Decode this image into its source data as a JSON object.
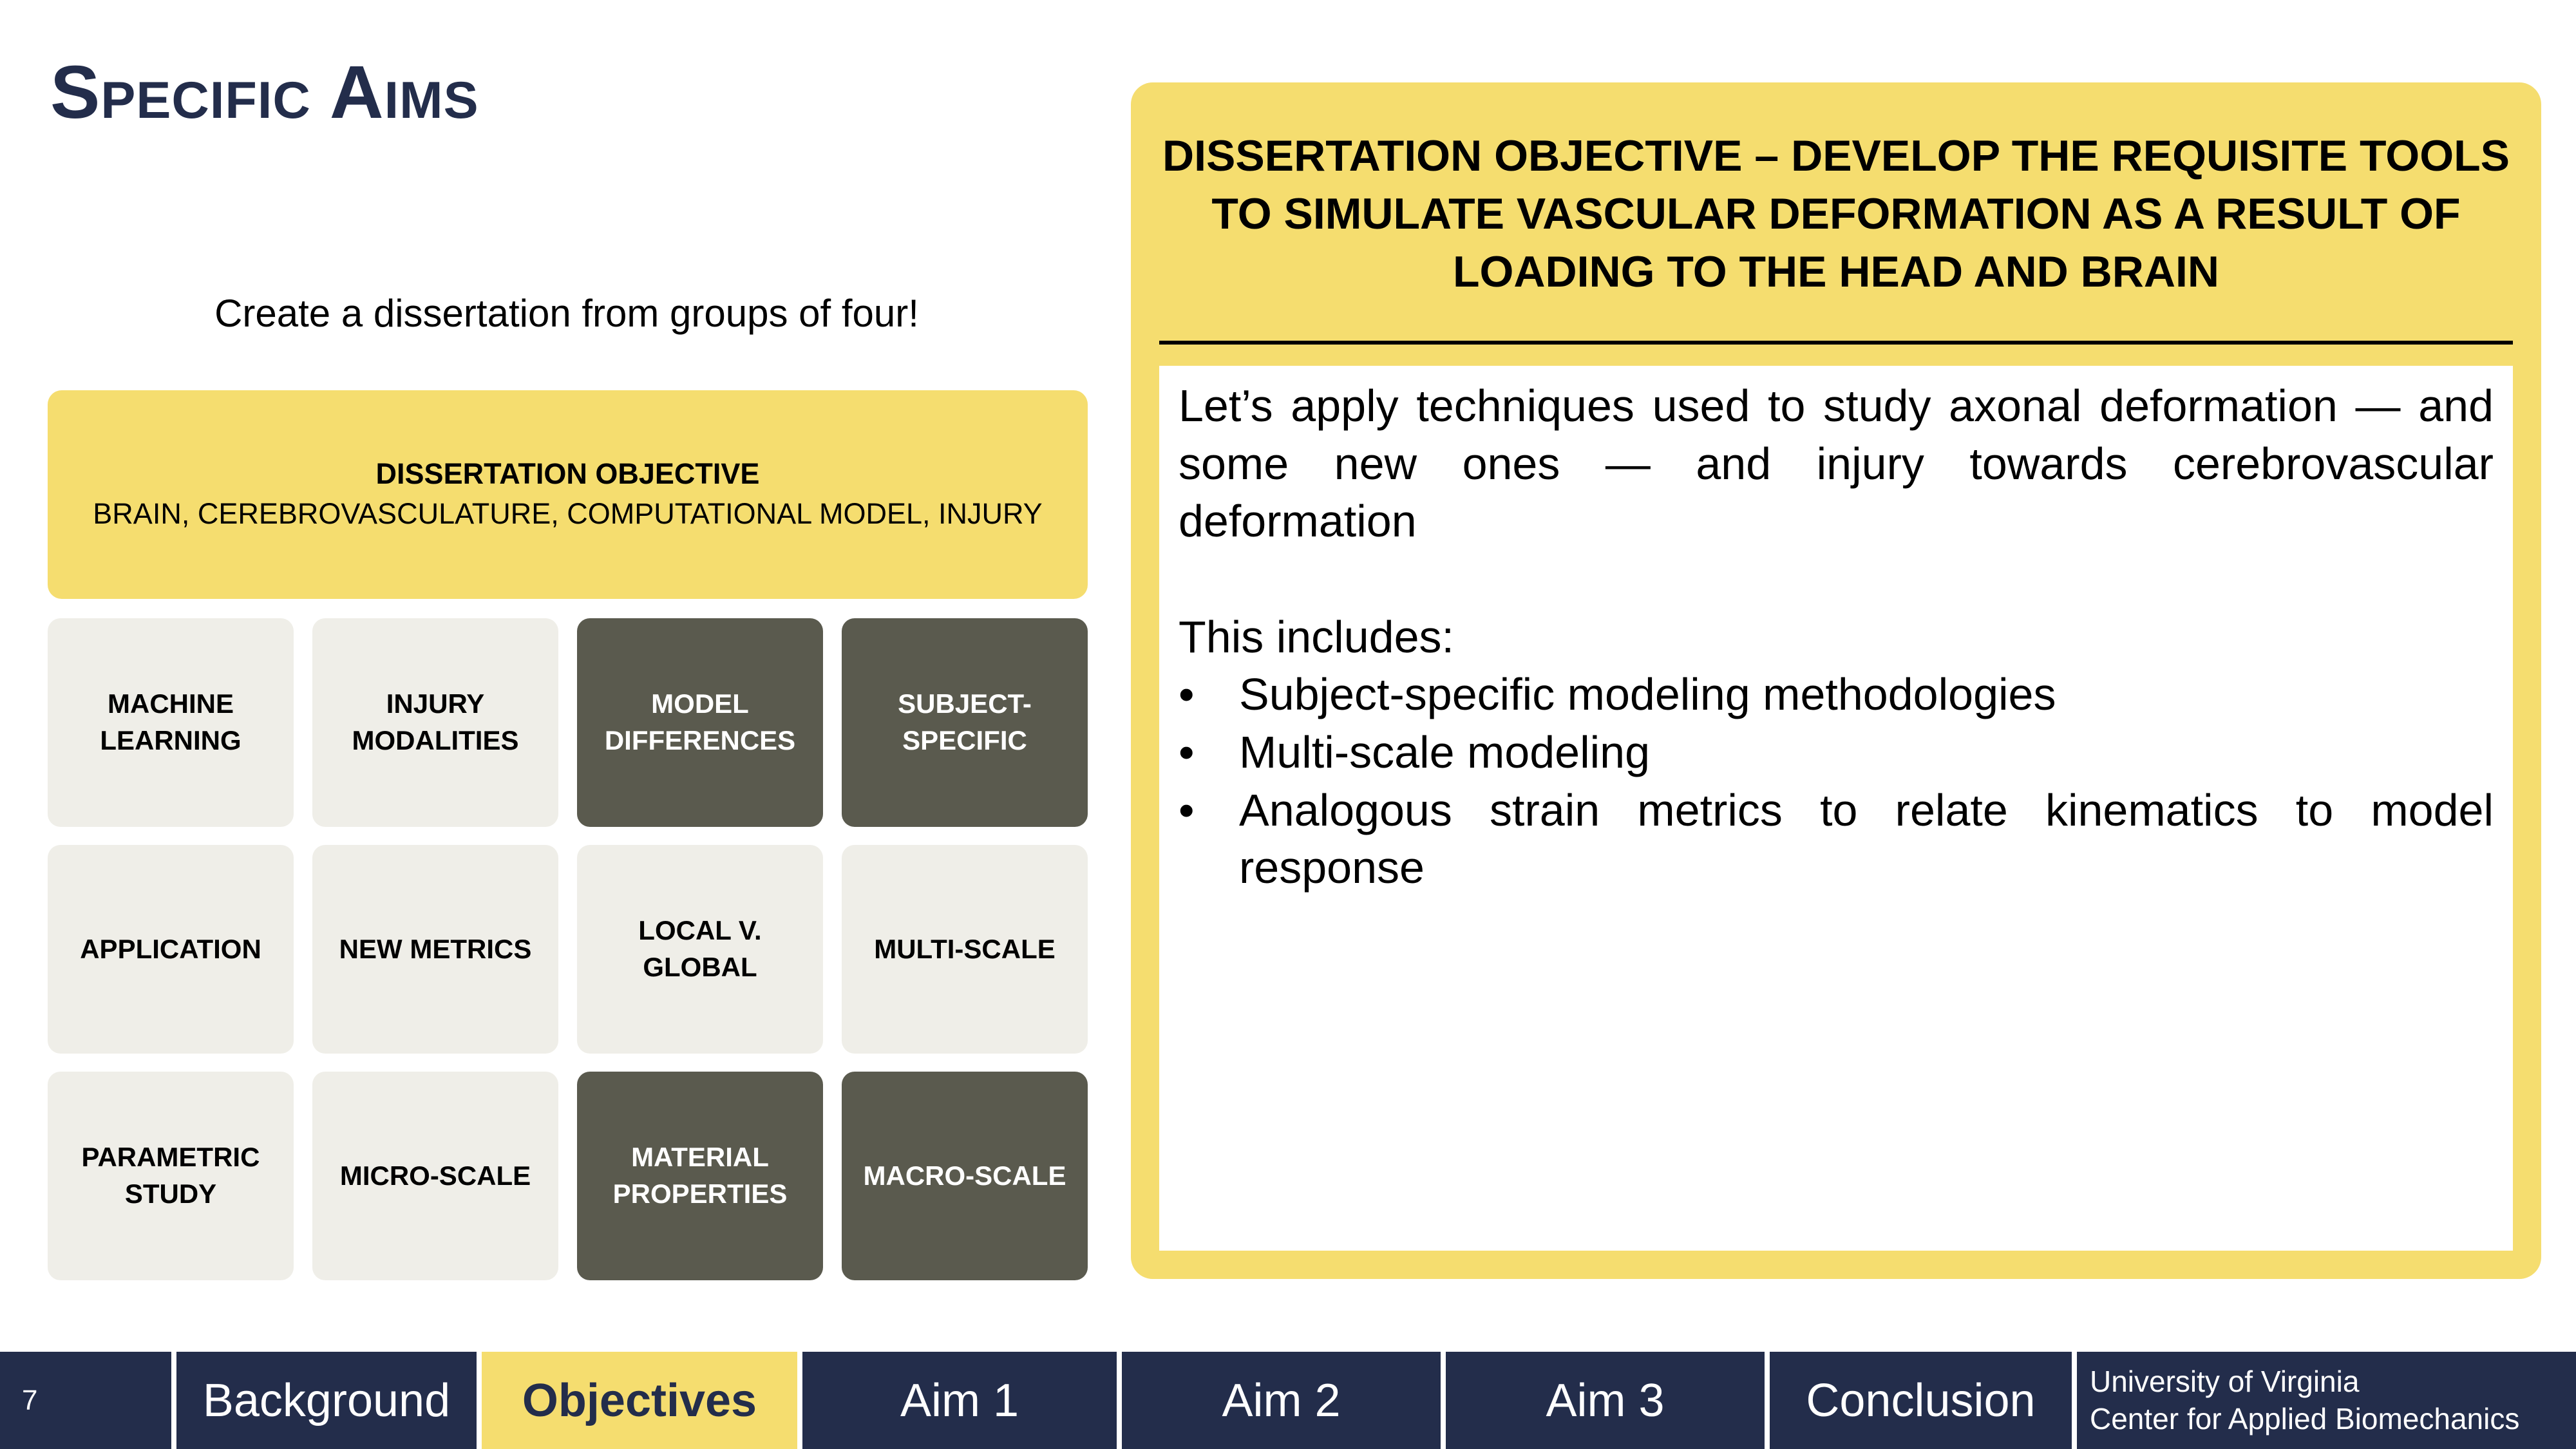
{
  "slide": {
    "title": "Specific Aims",
    "subtitle": "Create a dissertation from groups of four!"
  },
  "banner": {
    "heading": "DISSERTATION OBJECTIVE",
    "keywords": "BRAIN, CEREBROVASCULATURE, COMPUTATIONAL MODEL, INJURY"
  },
  "tiles": [
    {
      "label": "MACHINE LEARNING",
      "style": "light"
    },
    {
      "label": "INJURY MODALITIES",
      "style": "light"
    },
    {
      "label": "MODEL DIFFERENCES",
      "style": "dark"
    },
    {
      "label": "SUBJECT-SPECIFIC",
      "style": "dark"
    },
    {
      "label": "APPLICATION",
      "style": "light"
    },
    {
      "label": "NEW METRICS",
      "style": "light"
    },
    {
      "label": "LOCAL V. GLOBAL",
      "style": "light"
    },
    {
      "label": "MULTI-SCALE",
      "style": "light"
    },
    {
      "label": "PARAMETRIC STUDY",
      "style": "light"
    },
    {
      "label": "MICRO-SCALE",
      "style": "light"
    },
    {
      "label": "MATERIAL PROPERTIES",
      "style": "dark"
    },
    {
      "label": "MACRO-SCALE",
      "style": "dark"
    }
  ],
  "objective": {
    "heading": "DISSERTATION OBJECTIVE – DEVELOP THE REQUISITE TOOLS TO SIMULATE VASCULAR DEFORMATION AS A RESULT OF LOADING TO THE HEAD AND BRAIN",
    "paragraph": "Let’s apply techniques used to study axonal deformation — and some new ones — and injury towards cerebrovascular deformation",
    "includes_label": "This includes:",
    "bullet_char": "•",
    "bullets": [
      "Subject-specific modeling methodologies",
      "Multi-scale modeling",
      "Analogous strain metrics to relate kinematics to model response"
    ]
  },
  "footer": {
    "page_number": "7",
    "tabs": [
      "Background",
      "Objectives",
      "Aim 1",
      "Aim 2",
      "Aim 3",
      "Conclusion"
    ],
    "active_tab": "Objectives",
    "org_line1": "University of Virginia",
    "org_line2": "Center for Applied Biomechanics"
  },
  "colors": {
    "navy": "#232d4b",
    "gold": "#f5dd6f",
    "tile_light": "#efeee8",
    "tile_dark": "#5a5a4e"
  }
}
